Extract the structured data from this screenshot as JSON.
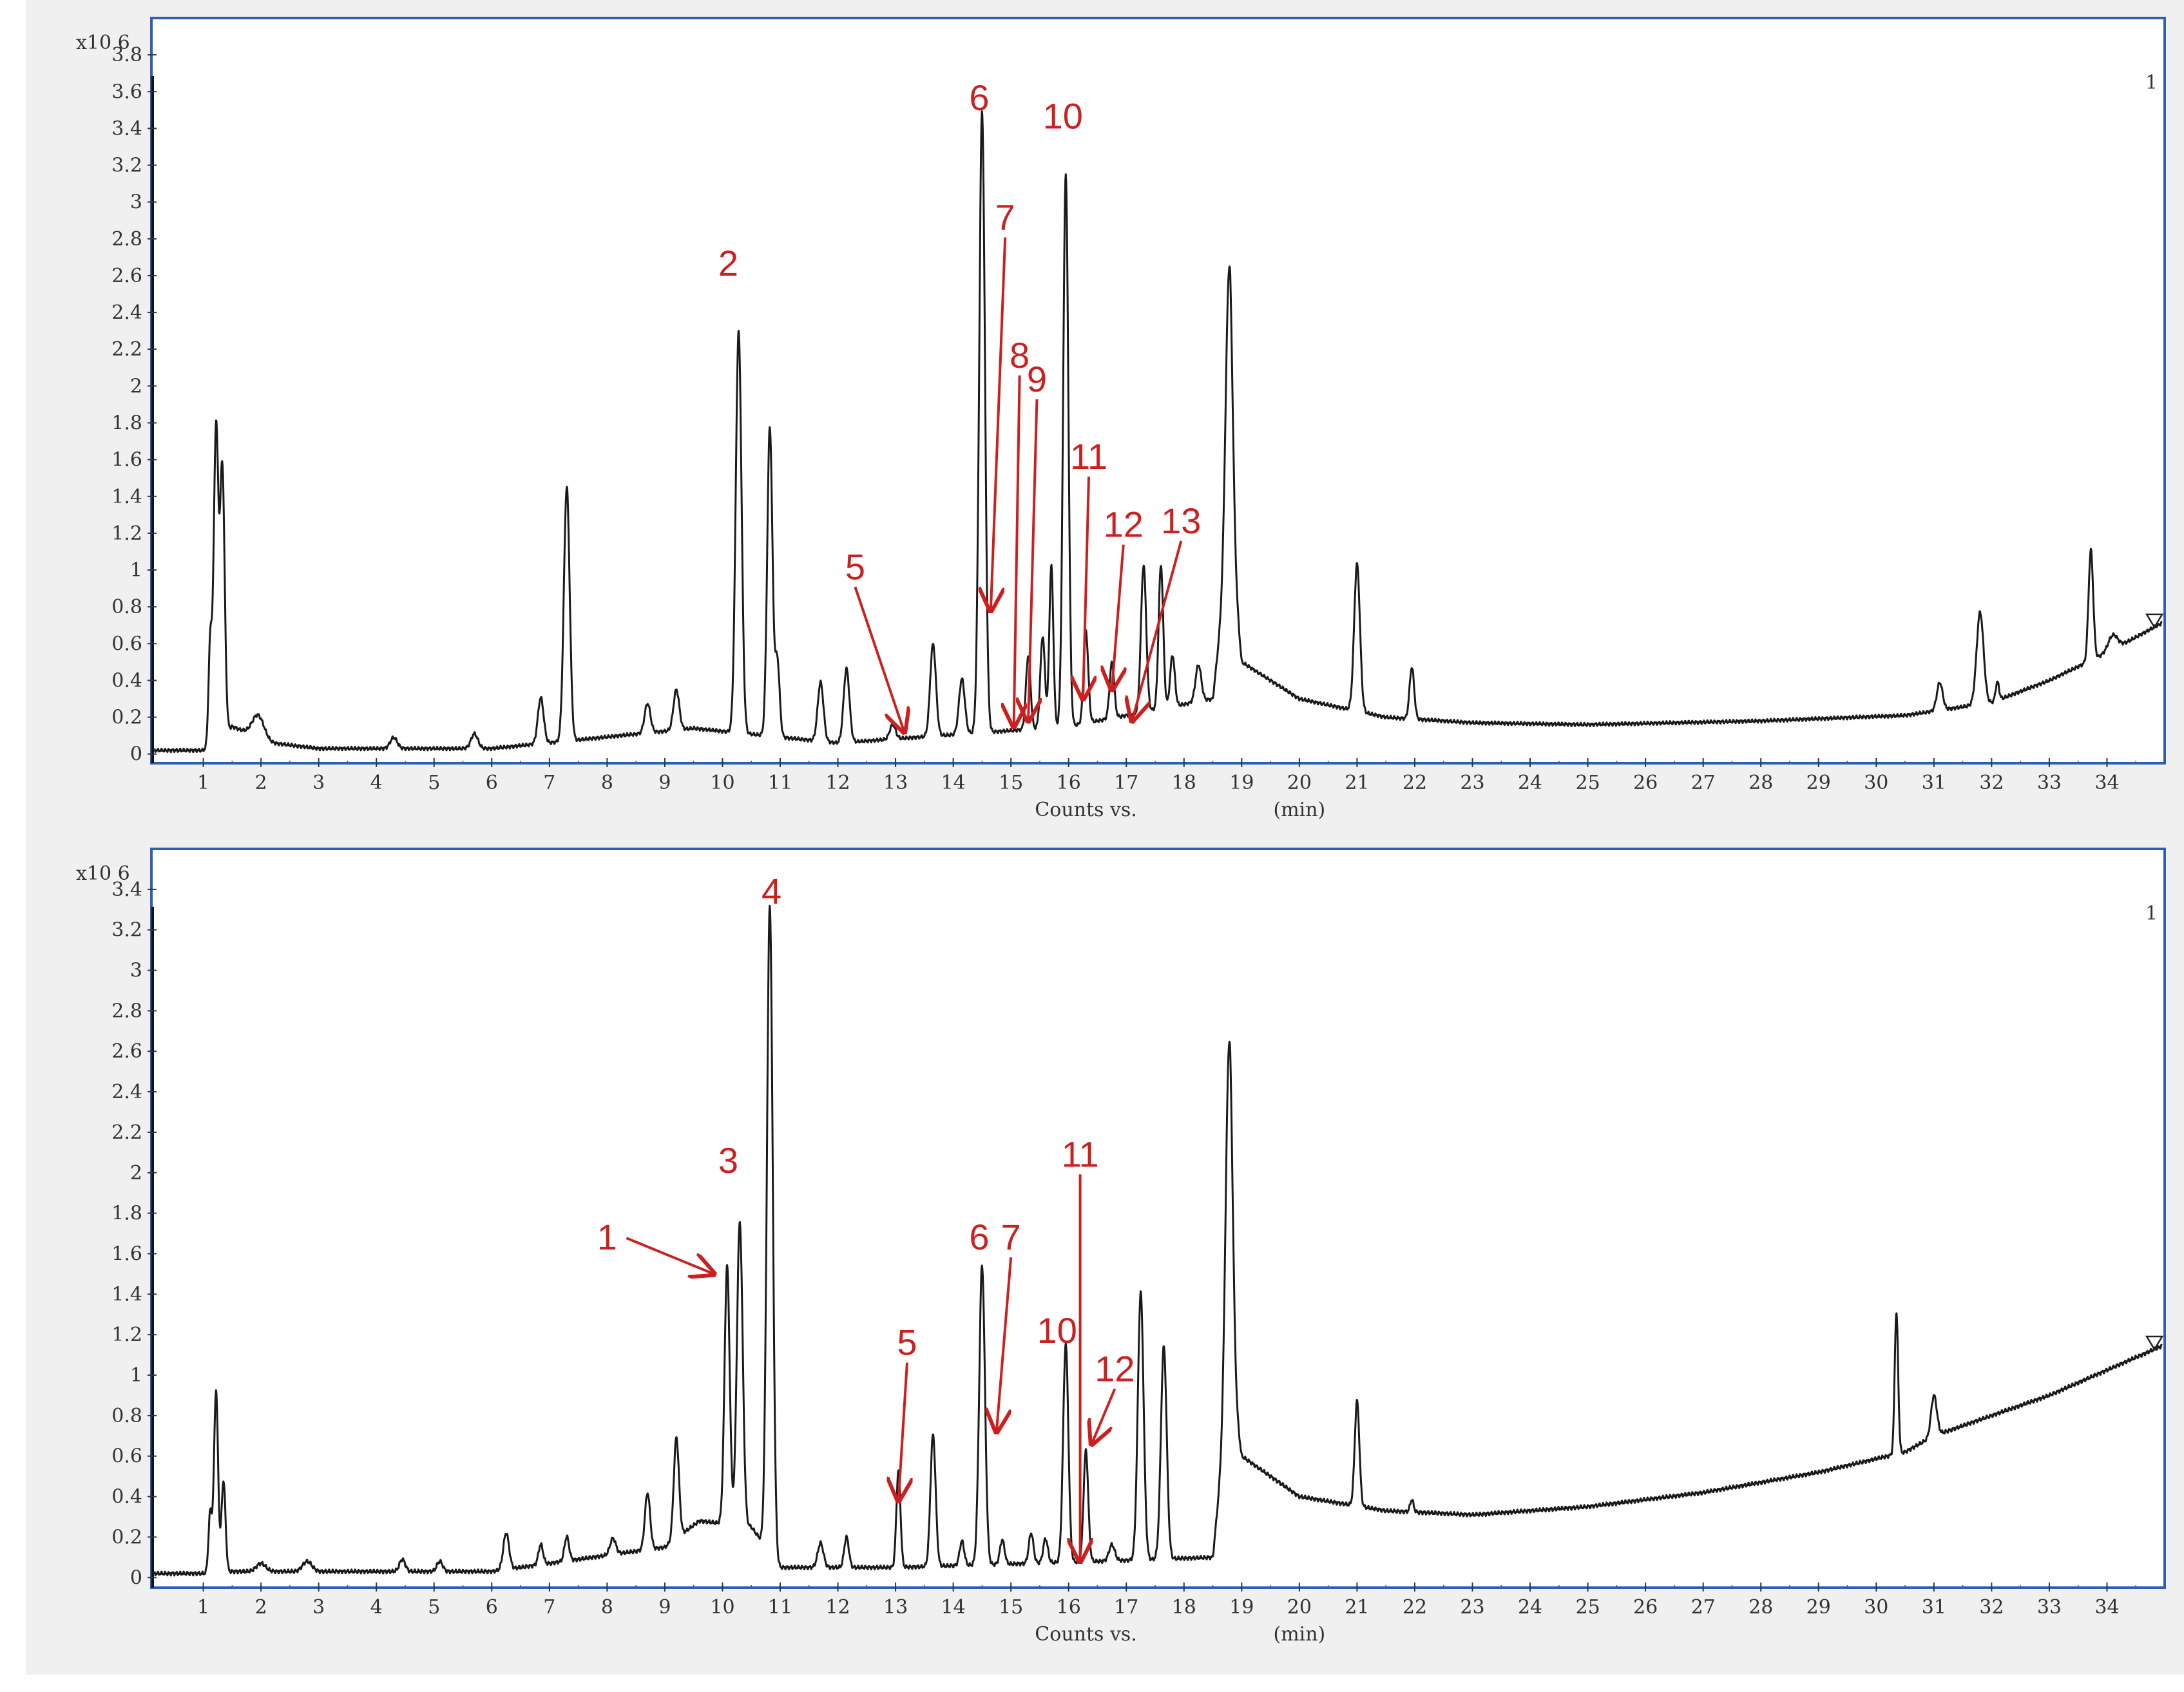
{
  "colors": {
    "trace": "#1a1a1a",
    "frame": "#2f5fb3",
    "annotation": "#cc2020",
    "background": "#f0f0f0"
  },
  "chart_data": [
    {
      "type": "line",
      "y_multiplier": "x10 6",
      "xlabel_left": "Counts vs.",
      "xlabel_right": "(min)",
      "xlim": [
        0.1,
        35
      ],
      "ylim": [
        -0.05,
        4.0
      ],
      "x_ticks": [
        1,
        2,
        3,
        4,
        5,
        6,
        7,
        8,
        9,
        10,
        11,
        12,
        13,
        14,
        15,
        16,
        17,
        18,
        19,
        20,
        21,
        22,
        23,
        24,
        25,
        26,
        27,
        28,
        29,
        30,
        31,
        32,
        33,
        34
      ],
      "y_ticks": [
        "0",
        "0.2",
        "0.4",
        "0.6",
        "0.8",
        "1",
        "1.2",
        "1.4",
        "1.6",
        "1.8",
        "2",
        "2.2",
        "2.4",
        "2.6",
        "2.8",
        "3",
        "3.2",
        "3.4",
        "3.6",
        "3.8"
      ],
      "corner_mark": "1",
      "baseline": [
        [
          0.1,
          0.02
        ],
        [
          1.0,
          0.02
        ],
        [
          1.5,
          0.15
        ],
        [
          2.2,
          0.06
        ],
        [
          3.0,
          0.03
        ],
        [
          6.0,
          0.03
        ],
        [
          9.5,
          0.14
        ],
        [
          12.0,
          0.06
        ],
        [
          16.0,
          0.15
        ],
        [
          18.5,
          0.3
        ],
        [
          18.8,
          1.2
        ],
        [
          19.0,
          0.5
        ],
        [
          20.0,
          0.3
        ],
        [
          21.5,
          0.2
        ],
        [
          23.0,
          0.17
        ],
        [
          25.0,
          0.16
        ],
        [
          28.0,
          0.18
        ],
        [
          30.5,
          0.21
        ],
        [
          32.0,
          0.28
        ],
        [
          33.0,
          0.4
        ],
        [
          34.0,
          0.55
        ],
        [
          35.0,
          0.72
        ]
      ],
      "peaks": [
        [
          1.12,
          0.55,
          0.03
        ],
        [
          1.22,
          1.7,
          0.04
        ],
        [
          1.33,
          1.45,
          0.04
        ],
        [
          1.95,
          0.12,
          0.1
        ],
        [
          4.3,
          0.06,
          0.06
        ],
        [
          5.7,
          0.08,
          0.06
        ],
        [
          6.85,
          0.25,
          0.05
        ],
        [
          7.3,
          1.38,
          0.05
        ],
        [
          8.7,
          0.16,
          0.05
        ],
        [
          9.2,
          0.22,
          0.05
        ],
        [
          10.28,
          2.18,
          0.05
        ],
        [
          10.82,
          1.68,
          0.045
        ],
        [
          10.95,
          0.42,
          0.04
        ],
        [
          11.7,
          0.32,
          0.05
        ],
        [
          12.15,
          0.4,
          0.05
        ],
        [
          12.95,
          0.08,
          0.05
        ],
        [
          13.65,
          0.5,
          0.05
        ],
        [
          14.15,
          0.3,
          0.05
        ],
        [
          14.5,
          3.38,
          0.05
        ],
        [
          15.3,
          0.4,
          0.04
        ],
        [
          15.55,
          0.5,
          0.04
        ],
        [
          15.7,
          0.88,
          0.035
        ],
        [
          15.95,
          3.0,
          0.045
        ],
        [
          16.3,
          0.5,
          0.04
        ],
        [
          16.75,
          0.3,
          0.04
        ],
        [
          17.3,
          0.8,
          0.045
        ],
        [
          17.6,
          0.78,
          0.04
        ],
        [
          17.8,
          0.28,
          0.04
        ],
        [
          18.25,
          0.2,
          0.05
        ],
        [
          18.78,
          1.5,
          0.06
        ],
        [
          21.0,
          0.8,
          0.05
        ],
        [
          21.95,
          0.28,
          0.04
        ],
        [
          31.1,
          0.15,
          0.05
        ],
        [
          31.8,
          0.5,
          0.06
        ],
        [
          32.1,
          0.1,
          0.03
        ],
        [
          33.72,
          0.6,
          0.04
        ],
        [
          34.1,
          0.08,
          0.08
        ]
      ],
      "annotations": [
        {
          "text": "2",
          "at": [
            10.1,
            2.6
          ]
        },
        {
          "text": "5",
          "at": [
            12.3,
            0.95
          ],
          "arrow": [
            13.15,
            0.12
          ]
        },
        {
          "text": "6",
          "at": [
            14.45,
            3.5
          ]
        },
        {
          "text": "7",
          "at": [
            14.9,
            2.85
          ],
          "arrow": [
            14.65,
            0.78
          ]
        },
        {
          "text": "8",
          "at": [
            15.15,
            2.1
          ],
          "arrow": [
            15.05,
            0.15
          ]
        },
        {
          "text": "9",
          "at": [
            15.45,
            1.97
          ],
          "arrow": [
            15.3,
            0.18
          ]
        },
        {
          "text": "10",
          "at": [
            15.9,
            3.4
          ]
        },
        {
          "text": "11",
          "at": [
            16.35,
            1.55
          ],
          "arrow": [
            16.25,
            0.3
          ]
        },
        {
          "text": "12",
          "at": [
            16.95,
            1.18
          ],
          "arrow": [
            16.75,
            0.35
          ]
        },
        {
          "text": "13",
          "at": [
            17.95,
            1.2
          ],
          "arrow": [
            17.1,
            0.18
          ]
        }
      ]
    },
    {
      "type": "line",
      "y_multiplier": "x10 6",
      "xlabel_left": "Counts vs.",
      "xlabel_right": "(min)",
      "xlim": [
        0.1,
        35
      ],
      "ylim": [
        -0.05,
        3.6
      ],
      "x_ticks": [
        1,
        2,
        3,
        4,
        5,
        6,
        7,
        8,
        9,
        10,
        11,
        12,
        13,
        14,
        15,
        16,
        17,
        18,
        19,
        20,
        21,
        22,
        23,
        24,
        25,
        26,
        27,
        28,
        29,
        30,
        31,
        32,
        33,
        34
      ],
      "y_ticks": [
        "0",
        "0.2",
        "0.4",
        "0.6",
        "0.8",
        "1",
        "1.2",
        "1.4",
        "1.6",
        "1.8",
        "2",
        "2.2",
        "2.4",
        "2.6",
        "2.8",
        "3",
        "3.2",
        "3.4"
      ],
      "corner_mark": "1",
      "baseline": [
        [
          0.1,
          0.02
        ],
        [
          1.0,
          0.02
        ],
        [
          1.5,
          0.03
        ],
        [
          6.0,
          0.03
        ],
        [
          9.0,
          0.15
        ],
        [
          9.6,
          0.28
        ],
        [
          10.5,
          0.25
        ],
        [
          11.0,
          0.05
        ],
        [
          13.0,
          0.05
        ],
        [
          16.5,
          0.08
        ],
        [
          18.5,
          0.1
        ],
        [
          18.8,
          1.0
        ],
        [
          19.0,
          0.6
        ],
        [
          20.0,
          0.4
        ],
        [
          21.5,
          0.33
        ],
        [
          23.0,
          0.31
        ],
        [
          25.0,
          0.35
        ],
        [
          27.0,
          0.42
        ],
        [
          29.0,
          0.52
        ],
        [
          30.5,
          0.62
        ],
        [
          31.0,
          0.7
        ],
        [
          33.0,
          0.9
        ],
        [
          35.0,
          1.15
        ]
      ],
      "peaks": [
        [
          1.12,
          0.3,
          0.03
        ],
        [
          1.22,
          0.9,
          0.035
        ],
        [
          1.35,
          0.45,
          0.035
        ],
        [
          2.0,
          0.04,
          0.08
        ],
        [
          2.8,
          0.05,
          0.08
        ],
        [
          4.45,
          0.06,
          0.05
        ],
        [
          5.1,
          0.05,
          0.05
        ],
        [
          6.25,
          0.18,
          0.05
        ],
        [
          6.85,
          0.1,
          0.04
        ],
        [
          7.3,
          0.12,
          0.04
        ],
        [
          8.1,
          0.08,
          0.05
        ],
        [
          8.7,
          0.28,
          0.045
        ],
        [
          9.2,
          0.5,
          0.045
        ],
        [
          10.08,
          1.28,
          0.045
        ],
        [
          10.3,
          1.5,
          0.05
        ],
        [
          10.82,
          3.2,
          0.05
        ],
        [
          11.7,
          0.12,
          0.05
        ],
        [
          12.15,
          0.15,
          0.04
        ],
        [
          13.05,
          0.48,
          0.035
        ],
        [
          13.65,
          0.65,
          0.045
        ],
        [
          14.15,
          0.12,
          0.04
        ],
        [
          14.5,
          1.48,
          0.05
        ],
        [
          14.85,
          0.12,
          0.04
        ],
        [
          15.35,
          0.15,
          0.04
        ],
        [
          15.6,
          0.12,
          0.04
        ],
        [
          15.95,
          1.08,
          0.045
        ],
        [
          16.3,
          0.55,
          0.04
        ],
        [
          16.75,
          0.08,
          0.05
        ],
        [
          17.25,
          1.32,
          0.05
        ],
        [
          17.65,
          1.05,
          0.05
        ],
        [
          18.78,
          1.7,
          0.06
        ],
        [
          21.0,
          0.52,
          0.04
        ],
        [
          21.95,
          0.06,
          0.03
        ],
        [
          30.35,
          0.7,
          0.03
        ],
        [
          31.0,
          0.2,
          0.05
        ]
      ],
      "annotations": [
        {
          "text": "1",
          "at": [
            8.0,
            1.62
          ],
          "arrow": [
            9.85,
            1.5
          ]
        },
        {
          "text": "3",
          "at": [
            10.1,
            2.0
          ]
        },
        {
          "text": "4",
          "at": [
            10.85,
            3.33
          ]
        },
        {
          "text": "5",
          "at": [
            13.2,
            1.1
          ],
          "arrow": [
            13.05,
            0.38
          ]
        },
        {
          "text": "6",
          "at": [
            14.45,
            1.62
          ]
        },
        {
          "text": "7",
          "at": [
            15.0,
            1.62
          ],
          "arrow": [
            14.75,
            0.72
          ]
        },
        {
          "text": "10",
          "at": [
            15.8,
            1.16
          ]
        },
        {
          "text": "11",
          "at": [
            16.2,
            2.03
          ],
          "arrow": [
            16.2,
            0.08
          ]
        },
        {
          "text": "12",
          "at": [
            16.8,
            0.97
          ],
          "arrow": [
            16.4,
            0.66
          ]
        }
      ]
    }
  ]
}
